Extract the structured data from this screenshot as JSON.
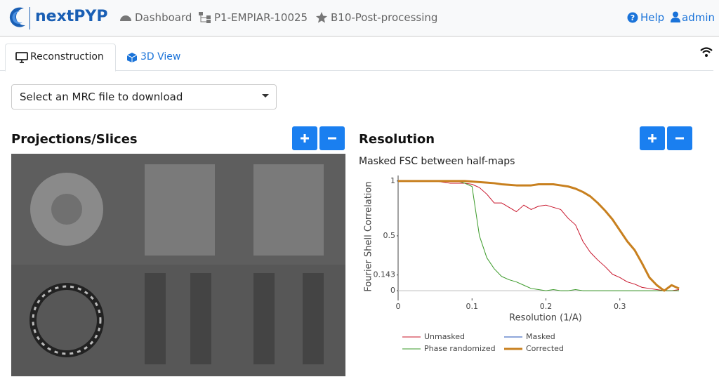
{
  "navbar": {
    "brand": "nextPYP",
    "breadcrumbs": [
      "Dashboard",
      "P1-EMPIAR-10025",
      "B10-Post-processing"
    ],
    "help": "Help",
    "user": "admin"
  },
  "tabs": [
    "Reconstruction",
    "3D View"
  ],
  "dropdown": "Select an MRC file to download",
  "projections": {
    "title": "Projections/Slices"
  },
  "resolution": {
    "title": "Resolution"
  },
  "chart_data": {
    "type": "line",
    "title": "Masked FSC between half-maps",
    "xlabel": "Resolution (1/A)",
    "ylabel": "Fourier Shell Correlation",
    "x": [
      0,
      0.01,
      0.02,
      0.03,
      0.04,
      0.05,
      0.06,
      0.07,
      0.08,
      0.09,
      0.1,
      0.11,
      0.12,
      0.13,
      0.14,
      0.15,
      0.16,
      0.17,
      0.18,
      0.19,
      0.2,
      0.21,
      0.22,
      0.23,
      0.24,
      0.25,
      0.26,
      0.27,
      0.28,
      0.29,
      0.3,
      0.31,
      0.32,
      0.33,
      0.34,
      0.35,
      0.36,
      0.37,
      0.38
    ],
    "series": [
      {
        "name": "Unmasked",
        "color": "#c8142a",
        "width": 1,
        "values": [
          1,
          1,
          1,
          1,
          1,
          1,
          0.99,
          0.98,
          0.98,
          0.98,
          0.97,
          0.94,
          0.88,
          0.8,
          0.8,
          0.76,
          0.72,
          0.78,
          0.74,
          0.77,
          0.78,
          0.76,
          0.74,
          0.66,
          0.6,
          0.45,
          0.35,
          0.28,
          0.22,
          0.15,
          0.12,
          0.08,
          0.06,
          0.03,
          0.02,
          0.01,
          0,
          0,
          0.01
        ]
      },
      {
        "name": "Masked",
        "color": "#1f4fb5",
        "width": 1,
        "values": [
          1,
          1,
          1,
          1,
          1,
          1,
          1,
          1,
          1,
          1,
          0.995,
          0.99,
          0.985,
          0.98,
          0.97,
          0.965,
          0.96,
          0.96,
          0.96,
          0.97,
          0.97,
          0.97,
          0.96,
          0.95,
          0.93,
          0.9,
          0.86,
          0.8,
          0.73,
          0.65,
          0.55,
          0.45,
          0.37,
          0.25,
          0.12,
          0.05,
          0,
          0.05,
          0.02
        ]
      },
      {
        "name": "Phase randomized",
        "color": "#3a9a28",
        "width": 1,
        "values": [
          1,
          1,
          1,
          1,
          1,
          1,
          1,
          1,
          1,
          0.98,
          0.95,
          0.5,
          0.3,
          0.2,
          0.13,
          0.1,
          0.08,
          0.05,
          0.02,
          0.01,
          0,
          0.01,
          0,
          0,
          0.01,
          0,
          0,
          0,
          0,
          0,
          0,
          0,
          0,
          0,
          0,
          0,
          0,
          0,
          0
        ]
      },
      {
        "name": "Corrected",
        "color": "#c8801f",
        "width": 3,
        "values": [
          1,
          1,
          1,
          1,
          1,
          1,
          1,
          1,
          1,
          1,
          0.995,
          0.99,
          0.985,
          0.98,
          0.97,
          0.965,
          0.96,
          0.96,
          0.96,
          0.97,
          0.97,
          0.97,
          0.96,
          0.95,
          0.93,
          0.9,
          0.86,
          0.8,
          0.73,
          0.65,
          0.55,
          0.45,
          0.37,
          0.25,
          0.12,
          0.05,
          0,
          0.05,
          0.02
        ]
      }
    ],
    "xlim": [
      0,
      0.38
    ],
    "xticks": [
      0,
      0.1,
      0.2,
      0.3
    ],
    "ylim": [
      -0.07,
      1.05
    ],
    "yticks": [
      0,
      0.143,
      0.5,
      1
    ],
    "grid": false
  }
}
